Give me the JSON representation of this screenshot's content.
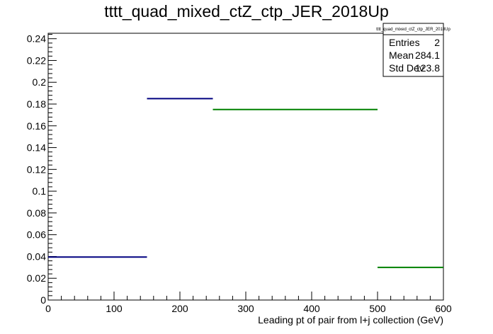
{
  "chart_data": {
    "type": "bar",
    "title": "tttt_quad_mixed_ctZ_ctp_JER_2018Up",
    "xlabel": "Leading pt of pair from l+j collection (GeV)",
    "ylabel": "",
    "xlim": [
      0,
      600
    ],
    "ylim": [
      0,
      0.245
    ],
    "x_ticks": [
      "0",
      "100",
      "200",
      "300",
      "400",
      "500",
      "600"
    ],
    "y_ticks": [
      "0",
      "0.02",
      "0.04",
      "0.06",
      "0.08",
      "0.1",
      "0.12",
      "0.14",
      "0.16",
      "0.18",
      "0.2",
      "0.22",
      "0.24"
    ],
    "grid": false,
    "series": [
      {
        "color": "#000080",
        "bins": [
          {
            "x0": 0,
            "x1": 150,
            "value": 0.0395
          },
          {
            "x0": 150,
            "x1": 250,
            "value": 0.185
          }
        ]
      },
      {
        "color": "#008000",
        "bins": [
          {
            "x0": 250,
            "x1": 500,
            "value": 0.175
          },
          {
            "x0": 500,
            "x1": 600,
            "value": 0.03
          }
        ]
      }
    ],
    "stats_box": {
      "name": "tttt_quad_mixed_ctZ_ctp_JER_2018Up",
      "rows": [
        {
          "label": "Entries",
          "value": "2"
        },
        {
          "label": "Mean",
          "value": "284.1"
        },
        {
          "label": "Std Dev",
          "value": "123.8"
        }
      ]
    }
  }
}
